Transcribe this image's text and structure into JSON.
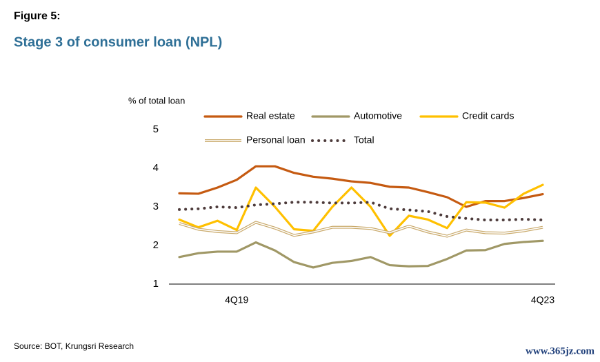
{
  "figure_label": "Figure 5:",
  "chart_data": {
    "type": "line",
    "title": "Stage 3 of consumer loan (NPL)",
    "y_label": "% of total loan",
    "categories": [
      null,
      null,
      null,
      "4Q19",
      null,
      null,
      null,
      null,
      null,
      null,
      null,
      null,
      null,
      null,
      null,
      null,
      null,
      null,
      null,
      "4Q23"
    ],
    "ylim": [
      1,
      5
    ],
    "yticks": [
      1,
      2,
      3,
      4,
      5
    ],
    "grid": false,
    "legend": "top",
    "series": [
      {
        "name": "Real estate",
        "color": "#c55a11",
        "style": "solid",
        "values": [
          3.35,
          3.34,
          3.5,
          3.7,
          4.05,
          4.05,
          3.88,
          3.78,
          3.73,
          3.66,
          3.62,
          3.52,
          3.5,
          3.38,
          3.25,
          3.0,
          3.15,
          3.15,
          3.23,
          3.33
        ]
      },
      {
        "name": "Automotive",
        "color": "#a09866",
        "style": "solid",
        "values": [
          1.7,
          1.8,
          1.84,
          1.84,
          2.08,
          1.87,
          1.57,
          1.43,
          1.55,
          1.6,
          1.7,
          1.49,
          1.46,
          1.47,
          1.65,
          1.87,
          1.88,
          2.04,
          2.09,
          2.12
        ]
      },
      {
        "name": "Credit cards",
        "color": "#ffc000",
        "style": "solid",
        "values": [
          2.67,
          2.47,
          2.64,
          2.4,
          3.5,
          3.0,
          2.42,
          2.38,
          3.0,
          3.5,
          3.0,
          2.25,
          2.77,
          2.67,
          2.45,
          3.12,
          3.11,
          2.98,
          3.34,
          3.57
        ]
      },
      {
        "name": "Personal loan",
        "color": "#c9a96a",
        "style": "double",
        "values": [
          2.57,
          2.42,
          2.36,
          2.33,
          2.6,
          2.45,
          2.26,
          2.35,
          2.47,
          2.47,
          2.44,
          2.33,
          2.5,
          2.35,
          2.24,
          2.4,
          2.33,
          2.32,
          2.38,
          2.47
        ]
      },
      {
        "name": "Total",
        "color": "#4d3b3b",
        "style": "dotted",
        "values": [
          2.93,
          2.95,
          3.0,
          2.98,
          3.05,
          3.08,
          3.12,
          3.12,
          3.1,
          3.1,
          3.12,
          2.95,
          2.92,
          2.88,
          2.75,
          2.7,
          2.66,
          2.66,
          2.68,
          2.66
        ]
      }
    ]
  },
  "source": "Source: BOT, Krungsri Research",
  "watermark": "www.365jz.com"
}
